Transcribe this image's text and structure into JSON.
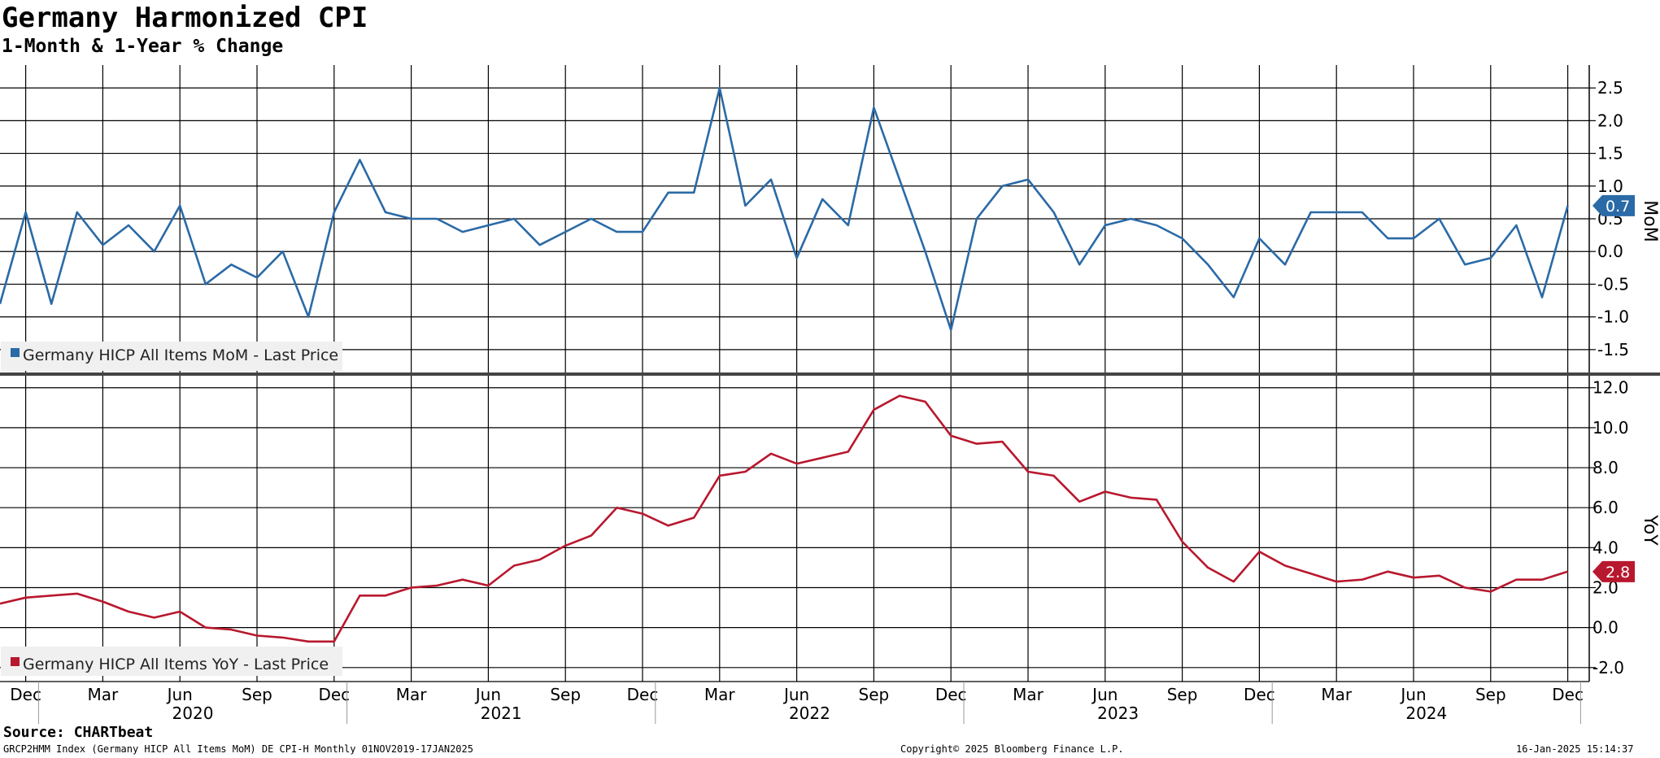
{
  "title": "Germany Harmonized CPI",
  "subtitle": "1-Month & 1-Year % Change",
  "source": "Source: CHARTbeat",
  "footer": {
    "left": "GRCP2HMM Index (Germany HICP All Items MoM) DE CPI-H  Monthly 01NOV2019-17JAN2025",
    "center": "Copyright© 2025 Bloomberg Finance L.P.",
    "right": "16-Jan-2025 15:14:37"
  },
  "colors": {
    "mom": "#2a6aa6",
    "yoy": "#b8182e",
    "grid": "#000000",
    "divider": "#444444"
  },
  "chart_data": [
    {
      "type": "line",
      "panel": "top",
      "axis_title": "MoM",
      "legend": "Germany HICP All Items MoM - Last Price",
      "legend_placement": "bottom-left",
      "last_value_label": "0.7",
      "ylim": [
        -1.85,
        2.85
      ],
      "yticks": [
        "2.5",
        "2.0",
        "1.5",
        "1.0",
        "0.5",
        "0.0",
        "-0.5",
        "-1.0",
        "-1.5"
      ],
      "grid": true,
      "x": [
        "2019-11",
        "2019-12",
        "2020-01",
        "2020-02",
        "2020-03",
        "2020-04",
        "2020-05",
        "2020-06",
        "2020-07",
        "2020-08",
        "2020-09",
        "2020-10",
        "2020-11",
        "2020-12",
        "2021-01",
        "2021-02",
        "2021-03",
        "2021-04",
        "2021-05",
        "2021-06",
        "2021-07",
        "2021-08",
        "2021-09",
        "2021-10",
        "2021-11",
        "2021-12",
        "2022-01",
        "2022-02",
        "2022-03",
        "2022-04",
        "2022-05",
        "2022-06",
        "2022-07",
        "2022-08",
        "2022-09",
        "2022-10",
        "2022-11",
        "2022-12",
        "2023-01",
        "2023-02",
        "2023-03",
        "2023-04",
        "2023-05",
        "2023-06",
        "2023-07",
        "2023-08",
        "2023-09",
        "2023-10",
        "2023-11",
        "2023-12",
        "2024-01",
        "2024-02",
        "2024-03",
        "2024-04",
        "2024-05",
        "2024-06",
        "2024-07",
        "2024-08",
        "2024-09",
        "2024-10",
        "2024-11",
        "2024-12"
      ],
      "series": [
        {
          "values": [
            -0.8,
            0.6,
            -0.8,
            0.6,
            0.1,
            0.4,
            0.0,
            0.7,
            -0.5,
            -0.2,
            -0.4,
            0.0,
            -1.0,
            0.6,
            1.4,
            0.6,
            0.5,
            0.5,
            0.3,
            0.4,
            0.5,
            0.1,
            0.3,
            0.5,
            0.3,
            0.3,
            0.9,
            0.9,
            2.5,
            0.7,
            1.1,
            -0.1,
            0.8,
            0.4,
            2.2,
            1.1,
            0.0,
            -1.2,
            0.5,
            1.0,
            1.1,
            0.6,
            -0.2,
            0.4,
            0.5,
            0.4,
            0.2,
            -0.2,
            -0.7,
            0.2,
            -0.2,
            0.6,
            0.6,
            0.6,
            0.2,
            0.2,
            0.5,
            -0.2,
            -0.1,
            0.4,
            -0.7,
            0.7
          ]
        }
      ]
    },
    {
      "type": "line",
      "panel": "bottom",
      "axis_title": "YoY",
      "legend": "Germany HICP All Items YoY - Last Price",
      "legend_placement": "bottom-left",
      "last_value_label": "2.8",
      "ylim": [
        -2.7,
        12.6
      ],
      "yticks": [
        "12.0",
        "10.0",
        "8.0",
        "6.0",
        "4.0",
        "2.0",
        "0.0",
        "-2.0"
      ],
      "grid": true,
      "x_tick_months": [
        "Dec",
        "Mar",
        "Jun",
        "Sep",
        "Dec",
        "Mar",
        "Jun",
        "Sep",
        "Dec",
        "Mar",
        "Jun",
        "Sep",
        "Dec",
        "Mar",
        "Jun",
        "Sep",
        "Dec",
        "Mar",
        "Jun",
        "Sep",
        "Dec"
      ],
      "x_tick_years": [
        "2020",
        "2021",
        "2022",
        "2023",
        "2024"
      ],
      "series": [
        {
          "values": [
            1.2,
            1.5,
            1.6,
            1.7,
            1.3,
            0.8,
            0.5,
            0.8,
            0.0,
            -0.1,
            -0.4,
            -0.5,
            -0.7,
            -0.7,
            1.6,
            1.6,
            2.0,
            2.1,
            2.4,
            2.1,
            3.1,
            3.4,
            4.1,
            4.6,
            6.0,
            5.7,
            5.1,
            5.5,
            7.6,
            7.8,
            8.7,
            8.2,
            8.5,
            8.8,
            10.9,
            11.6,
            11.3,
            9.6,
            9.2,
            9.3,
            7.8,
            7.6,
            6.3,
            6.8,
            6.5,
            6.4,
            4.3,
            3.0,
            2.3,
            3.8,
            3.1,
            2.7,
            2.3,
            2.4,
            2.8,
            2.5,
            2.6,
            2.0,
            1.8,
            2.4,
            2.4,
            2.8
          ]
        }
      ]
    }
  ]
}
